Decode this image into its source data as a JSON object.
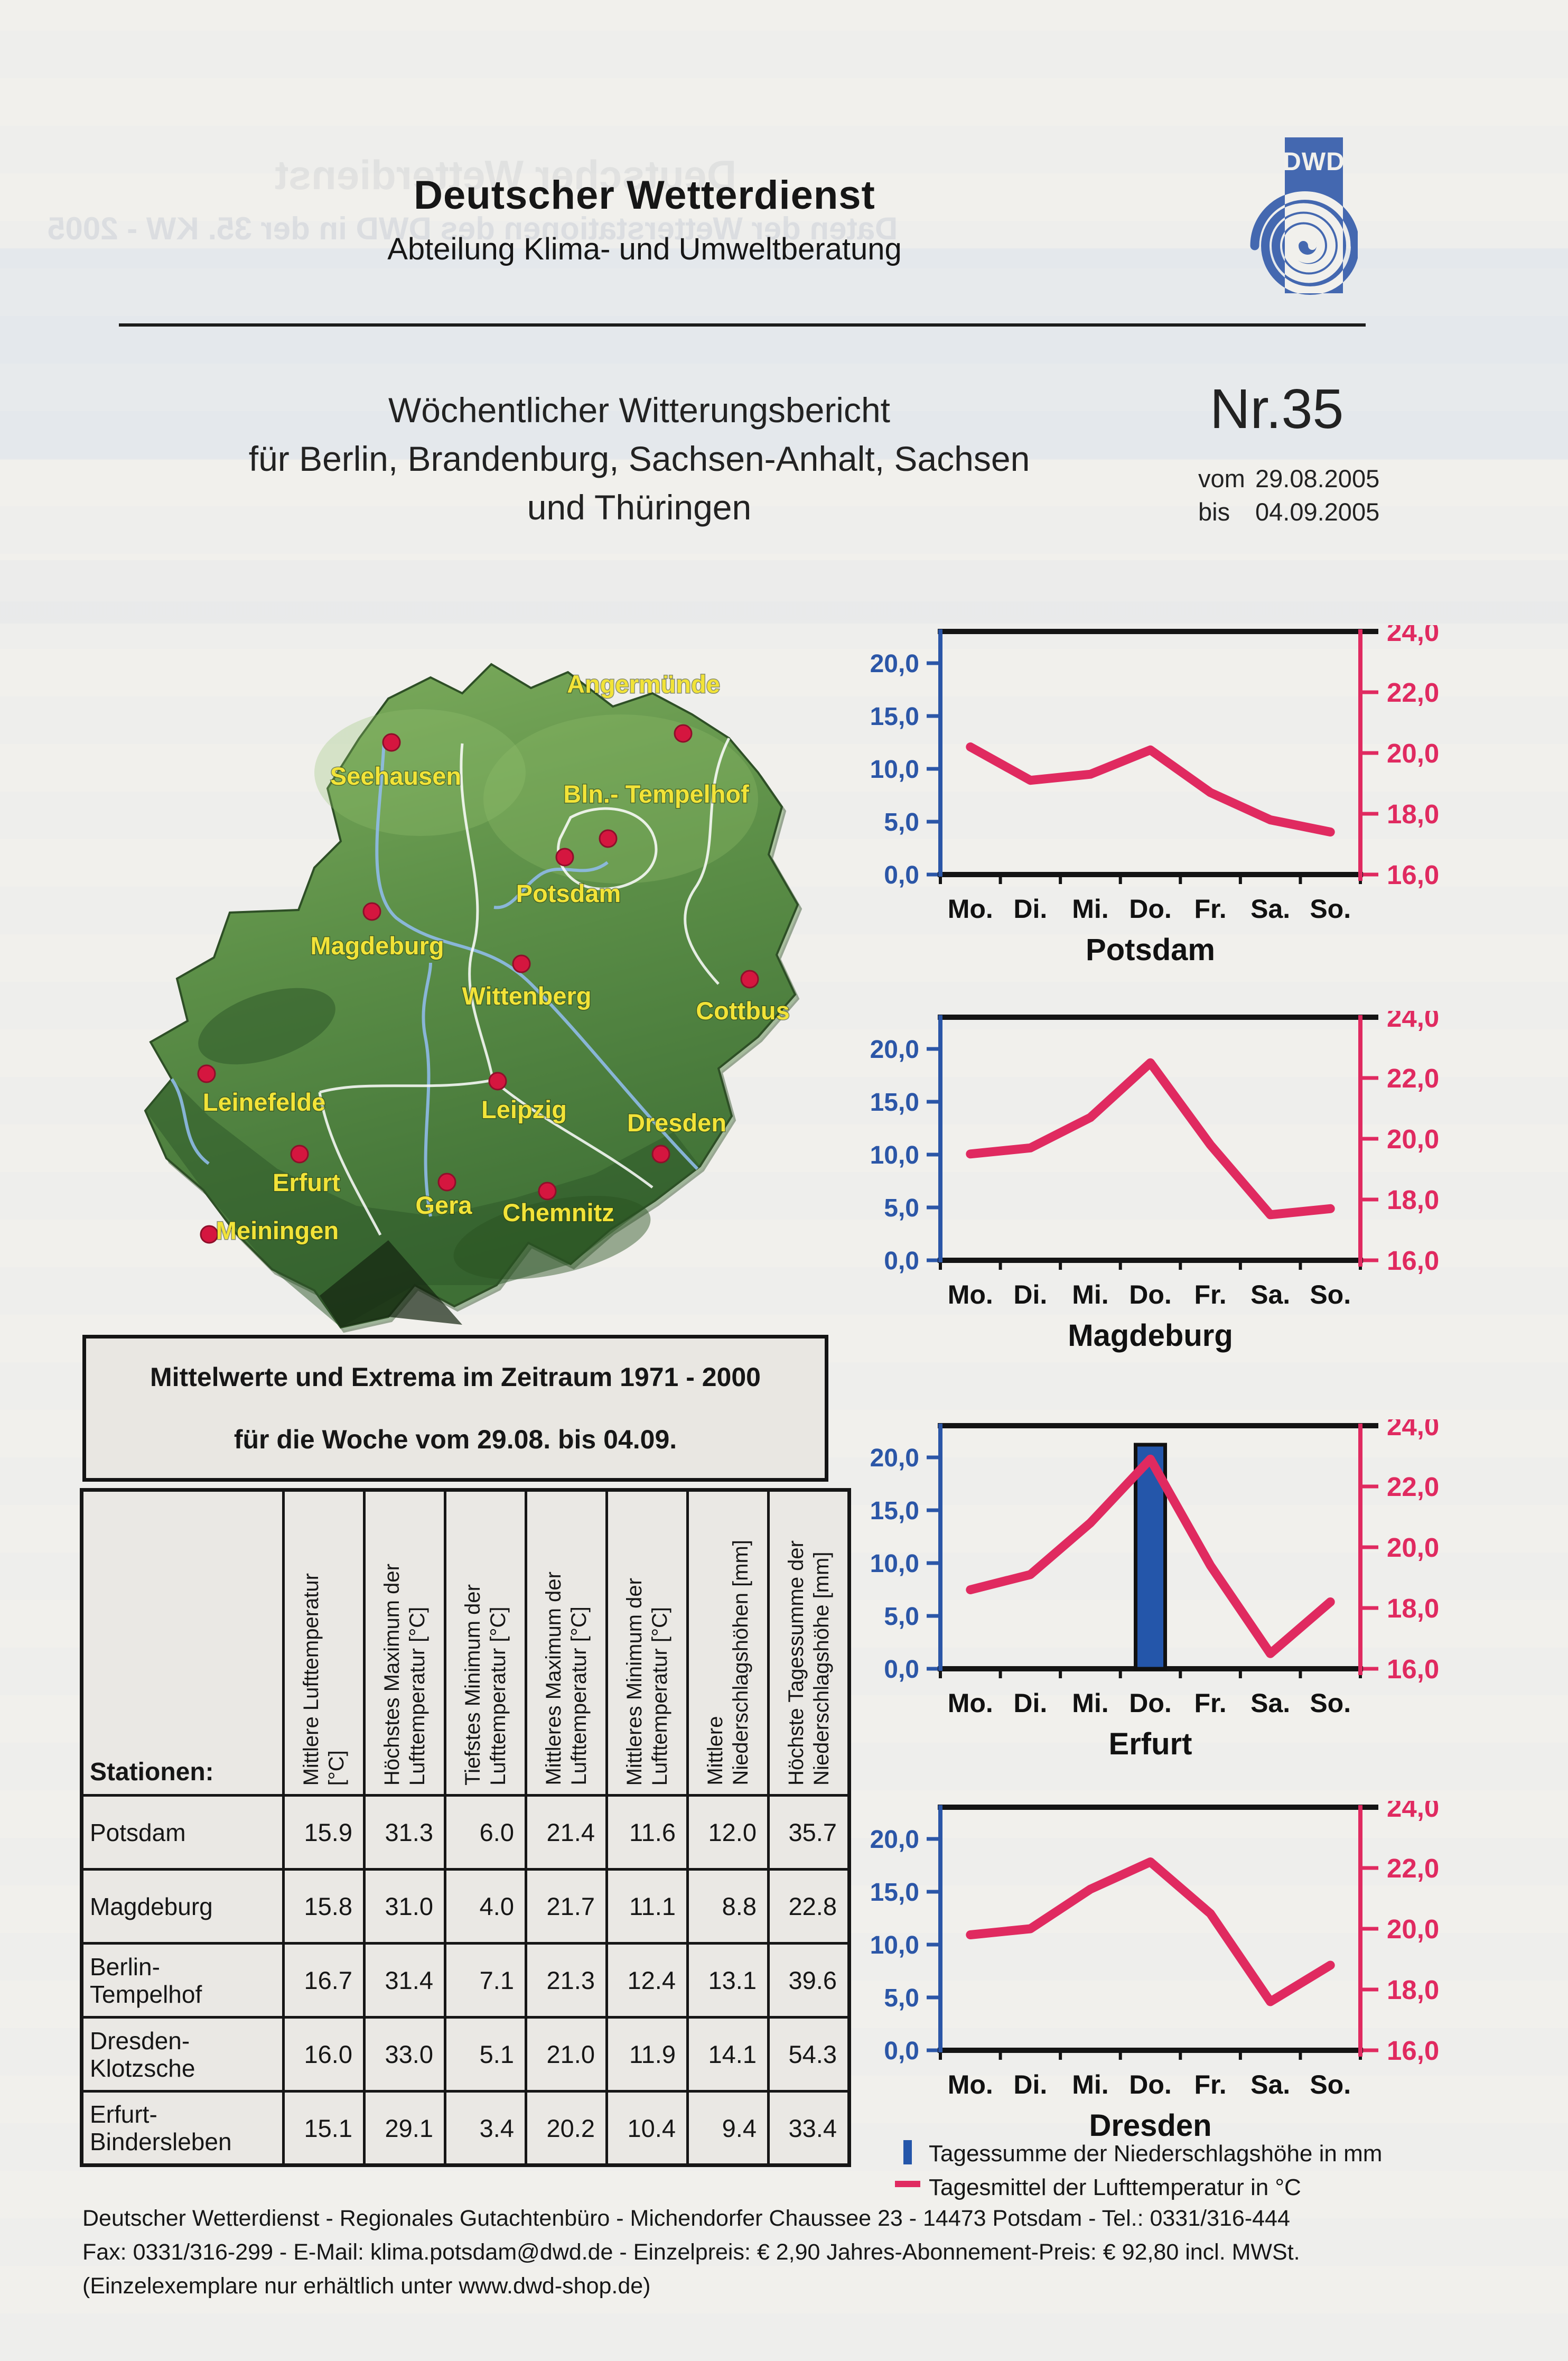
{
  "document": {
    "ghost_line1": "Deutscher Wetterdienst",
    "ghost_line2": "Daten der Wetterstationen des DWD in der 35. KW - 2005"
  },
  "header": {
    "org": "Deutscher Wetterdienst",
    "dept": "Abteilung Klima- und Umweltberatung",
    "logo_text": "DWD"
  },
  "titleblock": {
    "line1": "Wöchentlicher Witterungsbericht",
    "line2": "für Berlin, Brandenburg, Sachsen-Anhalt, Sachsen",
    "line3": "und Thüringen",
    "number": "Nr.35",
    "from_label": "vom",
    "from_date": "29.08.2005",
    "to_label": "bis",
    "to_date": "04.09.2005"
  },
  "map": {
    "label_color": "#f2e338",
    "dot_color": "#d5163f",
    "cities": [
      {
        "name": "Angermünde",
        "dot": [
          0.75,
          0.16
        ],
        "label": [
          0.7,
          0.105
        ]
      },
      {
        "name": "Seehausen",
        "dot": [
          0.38,
          0.172
        ],
        "label": [
          0.385,
          0.228
        ]
      },
      {
        "name": "Bln.- Tempelhof",
        "dot": [
          0.655,
          0.3
        ],
        "label": [
          0.716,
          0.252
        ]
      },
      {
        "name": "Potsdam",
        "dot": [
          0.6,
          0.325
        ],
        "label": [
          0.605,
          0.385
        ]
      },
      {
        "name": "Magdeburg",
        "dot": [
          0.355,
          0.398
        ],
        "label": [
          0.362,
          0.455
        ]
      },
      {
        "name": "Wittenberg",
        "dot": [
          0.545,
          0.468
        ],
        "label": [
          0.552,
          0.522
        ]
      },
      {
        "name": "Cottbus",
        "dot": [
          0.835,
          0.488
        ],
        "label": [
          0.826,
          0.542
        ]
      },
      {
        "name": "Leinefelde",
        "dot": [
          0.145,
          0.615
        ],
        "label": [
          0.218,
          0.664
        ]
      },
      {
        "name": "Leipzig",
        "dot": [
          0.515,
          0.625
        ],
        "label": [
          0.548,
          0.674
        ]
      },
      {
        "name": "Dresden",
        "dot": [
          0.722,
          0.722
        ],
        "label": [
          0.742,
          0.692
        ]
      },
      {
        "name": "Erfurt",
        "dot": [
          0.263,
          0.722
        ],
        "label": [
          0.272,
          0.772
        ]
      },
      {
        "name": "Gera",
        "dot": [
          0.45,
          0.76
        ],
        "label": [
          0.446,
          0.802
        ]
      },
      {
        "name": "Chemnitz",
        "dot": [
          0.578,
          0.772
        ],
        "label": [
          0.592,
          0.812
        ]
      },
      {
        "name": "Meiningen",
        "dot": [
          0.148,
          0.83
        ],
        "label": [
          0.235,
          0.836
        ]
      }
    ]
  },
  "chart_axes": {
    "days": [
      "Mo.",
      "Di.",
      "Mi.",
      "Do.",
      "Fr.",
      "Sa.",
      "So."
    ],
    "left_ticks": [
      "20,0",
      "15,0",
      "10,0",
      "5,0",
      "0,0"
    ],
    "right_ticks": [
      "24,0",
      "22,0",
      "20,0",
      "18,0",
      "16,0"
    ],
    "left_axis_max_mm": 23,
    "right_axis_min_c": 16,
    "right_axis_max_c": 24,
    "left_color": "#2b56a7",
    "right_color": "#e02a60",
    "left_unit": "mm",
    "right_unit": "°C"
  },
  "chart_data": [
    {
      "type": "line",
      "title": "Potsdam",
      "x": [
        "Mo.",
        "Di.",
        "Mi.",
        "Do.",
        "Fr.",
        "Sa.",
        "So."
      ],
      "temps_c": [
        20.2,
        19.1,
        19.3,
        20.1,
        18.7,
        17.8,
        17.4
      ],
      "precip_mm": [
        0,
        0,
        0,
        0,
        0,
        0,
        0
      ],
      "y_right_range": [
        16,
        24
      ],
      "y_left_range": [
        0,
        23
      ],
      "grid": false,
      "legend_position": "below"
    },
    {
      "type": "line",
      "title": "Magdeburg",
      "x": [
        "Mo.",
        "Di.",
        "Mi.",
        "Do.",
        "Fr.",
        "Sa.",
        "So."
      ],
      "temps_c": [
        19.5,
        19.7,
        20.7,
        22.5,
        19.8,
        17.5,
        17.7
      ],
      "precip_mm": [
        0,
        0,
        0,
        0,
        0,
        0,
        0
      ],
      "y_right_range": [
        16,
        24
      ],
      "y_left_range": [
        0,
        23
      ],
      "grid": false,
      "legend_position": "below"
    },
    {
      "type": "line+bar",
      "title": "Erfurt",
      "x": [
        "Mo.",
        "Di.",
        "Mi.",
        "Do.",
        "Fr.",
        "Sa.",
        "So."
      ],
      "temps_c": [
        18.6,
        19.1,
        20.8,
        22.9,
        19.4,
        16.5,
        18.2
      ],
      "precip_mm": [
        0,
        0,
        0,
        21.2,
        0,
        0,
        0
      ],
      "y_right_range": [
        16,
        24
      ],
      "y_left_range": [
        0,
        23
      ],
      "grid": false,
      "legend_position": "below"
    },
    {
      "type": "line",
      "title": "Dresden",
      "x": [
        "Mo.",
        "Di.",
        "Mi.",
        "Do.",
        "Fr.",
        "Sa.",
        "So."
      ],
      "temps_c": [
        19.8,
        20.0,
        21.3,
        22.2,
        20.5,
        17.6,
        18.8
      ],
      "precip_mm": [
        0,
        0,
        0,
        0,
        0,
        0,
        0
      ],
      "y_right_range": [
        16,
        24
      ],
      "y_left_range": [
        0,
        23
      ],
      "grid": false,
      "legend_position": "below"
    }
  ],
  "infobox": {
    "line1": "Mittelwerte und Extrema im Zeitraum 1971 - 2000",
    "line2": "für die Woche vom 29.08. bis 04.09."
  },
  "table": {
    "corner_label": "Stationen:",
    "columns": [
      "Mittlere Lufttemperatur\n[°C]",
      "Höchstes Maximum der\nLufttemperatur [°C]",
      "Tiefstes Minimum der\nLufttemperatur [°C]",
      "Mittleres Maximum der\nLufttemperatur [°C]",
      "Mittleres Minimum der\nLufttemperatur [°C]",
      "Mittlere\nNiederschlagshöhen [mm]",
      "Höchste Tagessumme der\nNiederschlagshöhe [mm]"
    ],
    "rows": [
      {
        "station": "Potsdam",
        "values": [
          "15.9",
          "31.3",
          "6.0",
          "21.4",
          "11.6",
          "12.0",
          "35.7"
        ]
      },
      {
        "station": "Magdeburg",
        "values": [
          "15.8",
          "31.0",
          "4.0",
          "21.7",
          "11.1",
          "8.8",
          "22.8"
        ]
      },
      {
        "station": "Berlin-\nTempelhof",
        "values": [
          "16.7",
          "31.4",
          "7.1",
          "21.3",
          "12.4",
          "13.1",
          "39.6"
        ]
      },
      {
        "station": "Dresden-\nKlotzsche",
        "values": [
          "16.0",
          "33.0",
          "5.1",
          "21.0",
          "11.9",
          "14.1",
          "54.3"
        ]
      },
      {
        "station": "Erfurt-\nBindersleben",
        "values": [
          "15.1",
          "29.1",
          "3.4",
          "20.2",
          "10.4",
          "9.4",
          "33.4"
        ]
      }
    ]
  },
  "legend": [
    {
      "icon": "bar",
      "label": "Tagessumme der Niederschlagshöhe in mm"
    },
    {
      "icon": "line",
      "label": "Tagesmittel der Lufttemperatur in °C"
    }
  ],
  "footer": {
    "line1": "Deutscher Wetterdienst - Regionales Gutachtenbüro - Michendorfer Chaussee 23 - 14473 Potsdam  -  Tel.: 0331/316-444",
    "line2": "Fax: 0331/316-299  -  E-Mail: klima.potsdam@dwd.de  -   Einzelpreis: € 2,90 Jahres-Abonnement-Preis: € 92,80 incl. MWSt.",
    "line3": "(Einzelexemplare nur erhältlich unter www.dwd-shop.de)"
  }
}
